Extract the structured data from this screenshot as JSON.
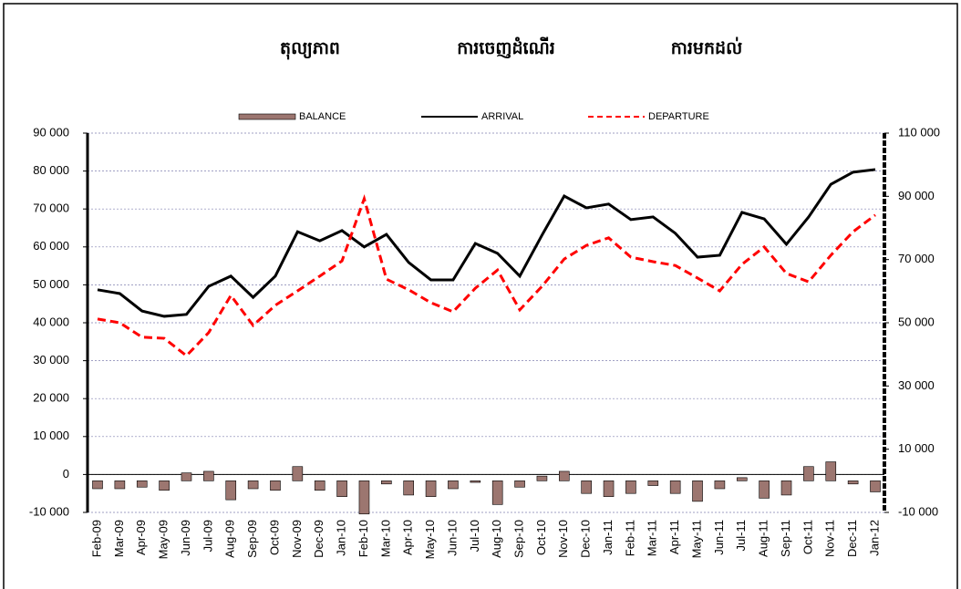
{
  "chart_data": {
    "type": "combo",
    "titles": [
      "តុល្យភាព",
      "ការចេញដំណើរ",
      "ការមកដល់"
    ],
    "categories": [
      "Feb-09",
      "Mar-09",
      "Apr-09",
      "May-09",
      "Jun-09",
      "Jul-09",
      "Aug-09",
      "Sep-09",
      "Oct-09",
      "Nov-09",
      "Dec-09",
      "Jan-10",
      "Feb-10",
      "Mar-10",
      "Apr-10",
      "May-10",
      "Jun-10",
      "Jul-10",
      "Aug-10",
      "Sep-10",
      "Oct-10",
      "Nov-10",
      "Dec-10",
      "Jan-11",
      "Feb-11",
      "Mar-11",
      "Apr-11",
      "May-11",
      "Jun-11",
      "Jul-11",
      "Aug-11",
      "Sep-11",
      "Oct-11",
      "Nov-11",
      "Dec-11",
      "Jan-12"
    ],
    "series": [
      {
        "name": "BALANCE",
        "type": "bar",
        "axis": "y2",
        "color": "#9c7670",
        "values": [
          -2500,
          -2500,
          -2000,
          -3000,
          2500,
          3000,
          -6000,
          -2500,
          -3000,
          4500,
          -3000,
          -5000,
          -10500,
          -1000,
          -4500,
          -5000,
          -2500,
          -500,
          -7500,
          -2000,
          1500,
          3000,
          -4000,
          -5000,
          -4000,
          -1500,
          -4000,
          -6500,
          -2500,
          1000,
          -5500,
          -4500,
          4500,
          6000,
          -1000,
          -3500
        ]
      },
      {
        "name": "ARRIVAL",
        "type": "line",
        "axis": "y",
        "color": "#000000",
        "dash": false,
        "values": [
          48700,
          47700,
          43100,
          41700,
          42200,
          49600,
          52300,
          46700,
          52300,
          64000,
          61600,
          64300,
          60000,
          63300,
          55900,
          51300,
          51300,
          60900,
          58300,
          52300,
          63100,
          73400,
          70300,
          71300,
          67200,
          67900,
          63600,
          57300,
          57800,
          69100,
          67400,
          60700,
          67900,
          76500,
          79700,
          80400
        ]
      },
      {
        "name": "DEPARTURE",
        "type": "line",
        "axis": "y",
        "color": "#ff0000",
        "dash": true,
        "values": [
          41000,
          40000,
          36200,
          35900,
          31300,
          37400,
          47200,
          39300,
          44600,
          48400,
          52300,
          56300,
          72700,
          51500,
          48700,
          45300,
          42900,
          49100,
          53900,
          43400,
          49600,
          56800,
          60400,
          62400,
          57300,
          56100,
          55100,
          51800,
          48400,
          55400,
          60000,
          53000,
          50800,
          57800,
          64000,
          68400
        ]
      }
    ],
    "ylim": [
      -10000,
      90000
    ],
    "yticks": [
      {
        "value": -10000,
        "label": "-10 000"
      },
      0,
      {
        "value": 10000,
        "label": "10 000"
      },
      {
        "value": 20000,
        "label": "20 000"
      },
      {
        "value": 30000,
        "label": "30 000"
      },
      {
        "value": 40000,
        "label": "40 000"
      },
      {
        "value": 50000,
        "label": "50 000"
      },
      {
        "value": 60000,
        "label": "60 000"
      },
      {
        "value": 70000,
        "label": "70 000"
      },
      {
        "value": 80000,
        "label": "80 000"
      },
      {
        "value": 90000,
        "label": "90 000"
      }
    ],
    "y2lim": [
      -10000,
      110000
    ],
    "y2ticks": [
      {
        "value": -10000,
        "label": "-10 000"
      },
      {
        "value": 10000,
        "label": "10 000"
      },
      {
        "value": 30000,
        "label": "30 000"
      },
      {
        "value": 50000,
        "label": "50 000"
      },
      {
        "value": 70000,
        "label": "70 000"
      },
      {
        "value": 90000,
        "label": "90 000"
      },
      {
        "value": 110000,
        "label": "110 000"
      }
    ],
    "grid": true
  }
}
